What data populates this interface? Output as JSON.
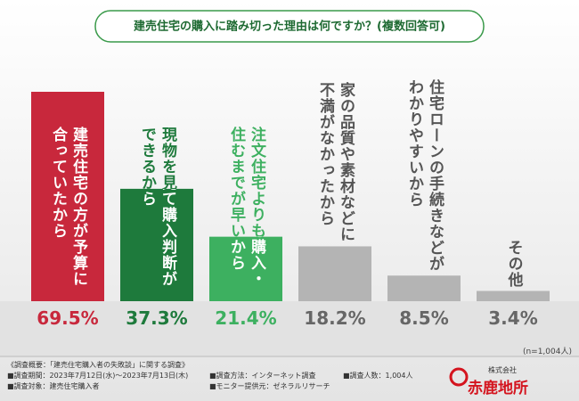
{
  "chart_data": {
    "type": "bar",
    "title": "建売住宅の購入に踏み切った理由は何ですか？(複数回答可)",
    "categories": [
      "建売住宅の方が予算に\n合っていたから",
      "現物を見て購入判断が\nできるから",
      "注文住宅よりも購入・\n住むまでが早いから",
      "家の品質や素材などに\n不満がなかったから",
      "住宅ローンの手続きなどが\nわかりやすいから",
      "その他"
    ],
    "values": [
      69.5,
      37.3,
      21.4,
      18.2,
      8.5,
      3.4
    ],
    "value_labels": [
      "69.5%",
      "37.3%",
      "21.4%",
      "18.2%",
      "8.5%",
      "3.4%"
    ],
    "colors": [
      "#c8283c",
      "#1e7a3c",
      "#3db060",
      "#b4b4b4",
      "#b4b4b4",
      "#b4b4b4"
    ],
    "ylim": [
      0,
      69.5
    ],
    "note": "(n=1,004人)"
  },
  "footer": {
    "lines": [
      "《調査概要：「建売住宅購入者の失敗談」に関する調査》",
      "■調査期間：2023年7月12日(水)〜2023年7月13日(木)",
      "■調査対象：建売住宅購入者",
      "■調査方法：インターネット調査",
      "■モニター提供元：ゼネラルリサーチ",
      "■調査人数：1,004人"
    ],
    "company_type": "株式会社",
    "company_name": "赤鹿地所"
  }
}
